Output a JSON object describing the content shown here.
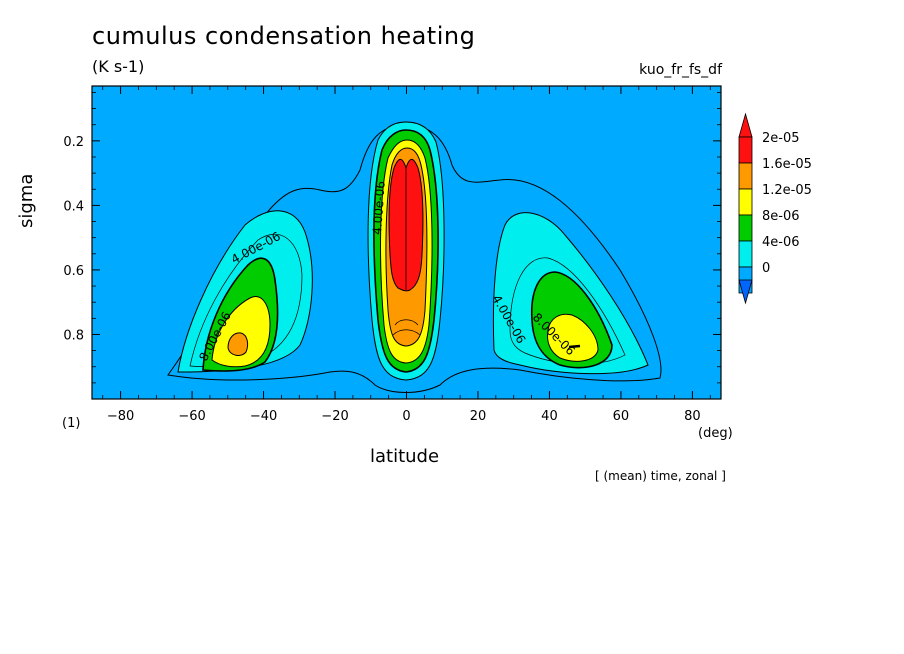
{
  "header": {
    "title": "cumulus condensation heating",
    "units": "(K s-1)",
    "variable": "kuo_fr_fs_df",
    "note": "[ (mean) time, zonal ]"
  },
  "axes": {
    "xlabel": "latitude",
    "xunit": "(deg)",
    "ylabel": "sigma",
    "yunit": "(1)"
  },
  "colors": {
    "background": "#00aaff",
    "level_4e-06": "#00eeee",
    "level_8e-06": "#00cc00",
    "level_1.2e-05": "#ffff00",
    "level_1.6e-05": "#ff9900",
    "level_2e-05": "#ff1111",
    "below_0": "#0066ff"
  },
  "chart_data": {
    "type": "contour",
    "title": "cumulus condensation heating",
    "xlabel": "latitude",
    "ylabel": "sigma",
    "xlim": [
      -88,
      88
    ],
    "ylim": [
      1.0,
      0.03
    ],
    "xticks": [
      -80,
      -60,
      -40,
      -20,
      0,
      20,
      40,
      60,
      80
    ],
    "xtick_labels": [
      "−80",
      "−60",
      "−40",
      "−20",
      "0",
      "20",
      "40",
      "60",
      "80"
    ],
    "yticks": [
      0.2,
      0.4,
      0.6,
      0.8
    ],
    "ytick_labels": [
      "0.2",
      "0.4",
      "0.6",
      "0.8"
    ],
    "colorbar": {
      "levels": [
        0,
        4e-06,
        8e-06,
        1.2e-05,
        1.6e-05,
        2e-05
      ],
      "labels": [
        "0",
        "4e-06",
        "8e-06",
        "1.2e-05",
        "1.6e-05",
        "2e-05"
      ],
      "colors": [
        "#00aaff",
        "#00eeee",
        "#00cc00",
        "#ffff00",
        "#ff9900",
        "#ff1111"
      ],
      "under_color": "#0066ff",
      "over_color": "#ff1111"
    },
    "contour_labels": [
      "4.00e-06",
      "8.00e-06",
      "4.00e-06",
      "8.00e-06",
      "4.00e-06"
    ],
    "regions": [
      {
        "name": "southern maximum",
        "center_lat": -46,
        "center_sigma": 0.83,
        "max_level": 1.6e-05
      },
      {
        "name": "equatorial maximum",
        "center_lat": 0,
        "center_sigma": 0.4,
        "max_level": 2e-05
      },
      {
        "name": "northern maximum",
        "center_lat": 47,
        "center_sigma": 0.83,
        "max_level": 1.2e-05
      }
    ]
  }
}
